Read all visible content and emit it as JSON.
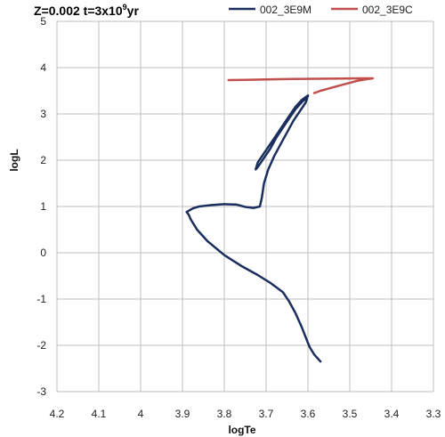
{
  "chart_data": {
    "type": "line",
    "title_prefix": "Z=0.002 t=3x10",
    "title_sup": "9",
    "title_suffix": "yr",
    "xlabel": "logTe",
    "ylabel": "logL",
    "xlim": [
      4.2,
      3.3
    ],
    "ylim": [
      -3,
      5
    ],
    "x_reversed": true,
    "grid": true,
    "legend_position": "top",
    "x_ticks": [
      "4.2",
      "4.1",
      "4",
      "3.9",
      "3.8",
      "3.7",
      "3.6",
      "3.5",
      "3.4",
      "3.3"
    ],
    "y_ticks": [
      "5",
      "4",
      "3",
      "2",
      "1",
      "0",
      "-1",
      "-2",
      "-3"
    ],
    "series": [
      {
        "name": "002_3E9M",
        "color": "#1b2f5e",
        "points": [
          [
            3.57,
            -2.35
          ],
          [
            3.585,
            -2.2
          ],
          [
            3.595,
            -2.05
          ],
          [
            3.6,
            -1.95
          ],
          [
            3.615,
            -1.6
          ],
          [
            3.63,
            -1.3
          ],
          [
            3.645,
            -1.05
          ],
          [
            3.66,
            -0.85
          ],
          [
            3.69,
            -0.65
          ],
          [
            3.72,
            -0.48
          ],
          [
            3.76,
            -0.28
          ],
          [
            3.8,
            -0.05
          ],
          [
            3.84,
            0.25
          ],
          [
            3.865,
            0.5
          ],
          [
            3.88,
            0.72
          ],
          [
            3.885,
            0.82
          ],
          [
            3.89,
            0.88
          ],
          [
            3.875,
            0.96
          ],
          [
            3.86,
            1.0
          ],
          [
            3.83,
            1.03
          ],
          [
            3.8,
            1.05
          ],
          [
            3.77,
            1.04
          ],
          [
            3.75,
            0.99
          ],
          [
            3.73,
            0.97
          ],
          [
            3.715,
            1.0
          ],
          [
            3.71,
            1.2
          ],
          [
            3.705,
            1.5
          ],
          [
            3.695,
            1.8
          ],
          [
            3.68,
            2.1
          ],
          [
            3.665,
            2.35
          ],
          [
            3.65,
            2.6
          ],
          [
            3.635,
            2.85
          ],
          [
            3.62,
            3.05
          ],
          [
            3.605,
            3.25
          ],
          [
            3.6,
            3.4
          ],
          [
            3.615,
            3.3
          ],
          [
            3.63,
            3.15
          ],
          [
            3.645,
            2.95
          ],
          [
            3.66,
            2.75
          ],
          [
            3.675,
            2.55
          ],
          [
            3.69,
            2.35
          ],
          [
            3.705,
            2.15
          ],
          [
            3.72,
            1.95
          ],
          [
            3.725,
            1.8
          ],
          [
            3.72,
            1.85
          ],
          [
            3.705,
            2.05
          ],
          [
            3.69,
            2.25
          ],
          [
            3.675,
            2.5
          ],
          [
            3.66,
            2.7
          ],
          [
            3.645,
            2.9
          ],
          [
            3.63,
            3.1
          ],
          [
            3.615,
            3.25
          ],
          [
            3.6,
            3.38
          ]
        ]
      },
      {
        "name": "002_3E9C",
        "color": "#c0504d",
        "points": [
          [
            3.585,
            3.45
          ],
          [
            3.57,
            3.5
          ],
          [
            3.55,
            3.55
          ],
          [
            3.53,
            3.6
          ],
          [
            3.505,
            3.66
          ],
          [
            3.48,
            3.72
          ],
          [
            3.46,
            3.75
          ],
          [
            3.445,
            3.77
          ],
          [
            3.47,
            3.77
          ],
          [
            3.52,
            3.765
          ],
          [
            3.58,
            3.76
          ],
          [
            3.64,
            3.755
          ],
          [
            3.7,
            3.745
          ],
          [
            3.75,
            3.735
          ],
          [
            3.79,
            3.73
          ]
        ]
      }
    ]
  }
}
